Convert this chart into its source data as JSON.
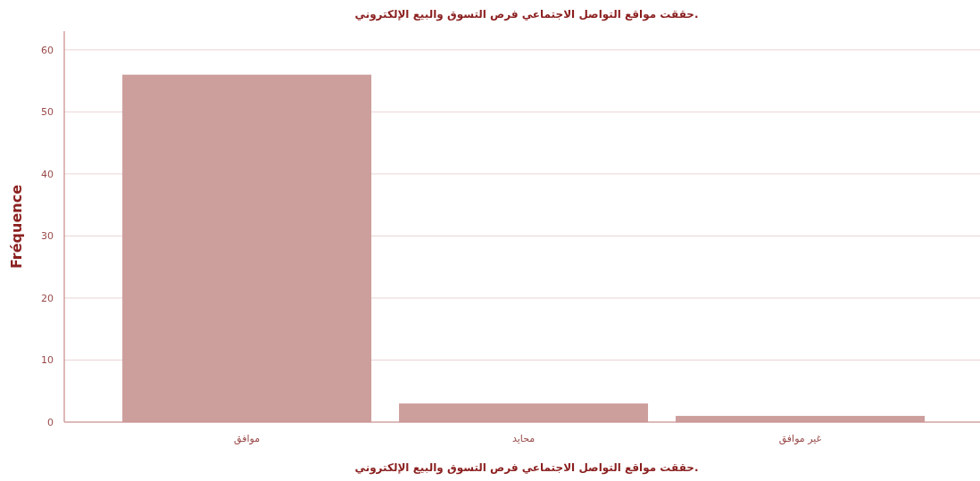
{
  "chart_data": {
    "type": "bar",
    "title": "حققت مواقع التواصل الاجتماعي فرص التسوق والبيع الإلكتروني.",
    "xlabel": "حققت مواقع التواصل الاجتماعي فرص التسوق والبيع الإلكتروني.",
    "ylabel": "Fréquence",
    "categories": [
      "موافق",
      "محايد",
      "غير موافق"
    ],
    "values": [
      56,
      3,
      1
    ],
    "color": "#cc9e9c",
    "ylim": [
      0,
      63
    ],
    "yticks": [
      0,
      10,
      20,
      30,
      40,
      50,
      60
    ],
    "grid": "y"
  }
}
